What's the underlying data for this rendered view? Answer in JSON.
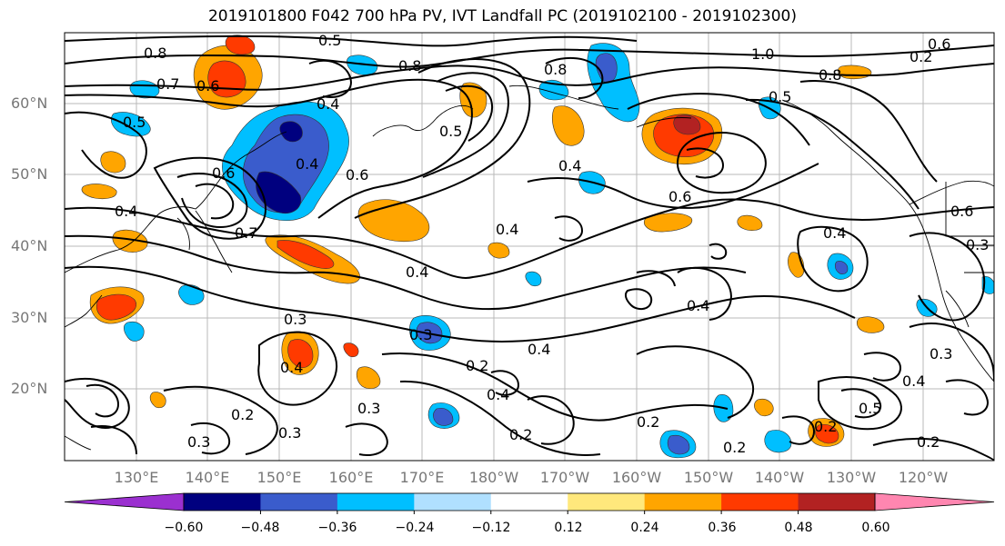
{
  "title": "2019101800 F042 700 hPa PV, IVT Landfall PC (2019102100 - 2019102300)",
  "lat_labels": [
    "60°N",
    "50°N",
    "40°N",
    "30°N",
    "20°N"
  ],
  "lon_labels": [
    "130°E",
    "140°E",
    "150°E",
    "160°E",
    "170°E",
    "180°W",
    "170°W",
    "160°W",
    "150°W",
    "140°W",
    "130°W",
    "120°W"
  ],
  "contour_labels": [
    "0.8",
    "0.5",
    "0.7",
    "0.6",
    "0.5",
    "0.4",
    "0.4",
    "0.6",
    "0.8",
    "0.7",
    "0.4",
    "0.4",
    "0.6",
    "0.5",
    "0.4",
    "0.3",
    "0.4",
    "0.3",
    "0.2",
    "0.4",
    "0.3",
    "0.2",
    "0.3",
    "0.2",
    "0.3",
    "1.0",
    "0.8",
    "0.5",
    "0.6",
    "0.2",
    "0.8",
    "0.4",
    "0.6",
    "0.4",
    "0.6",
    "0.3",
    "0.4",
    "0.3",
    "0.4",
    "0.5",
    "0.2",
    "0.2",
    "0.2",
    "0.4",
    "0.2"
  ],
  "colorbar": {
    "ticks": [
      "−0.60",
      "−0.48",
      "−0.36",
      "−0.24",
      "−0.12",
      "0.12",
      "0.24",
      "0.36",
      "0.48",
      "0.60"
    ],
    "colors": [
      "#9b30d0",
      "#00007f",
      "#3a5ccc",
      "#00bfff",
      "#b0e0ff",
      "#ffffff",
      "#ffe87c",
      "#ffa500",
      "#ff3a00",
      "#b22222",
      "#ff86b0"
    ]
  }
}
